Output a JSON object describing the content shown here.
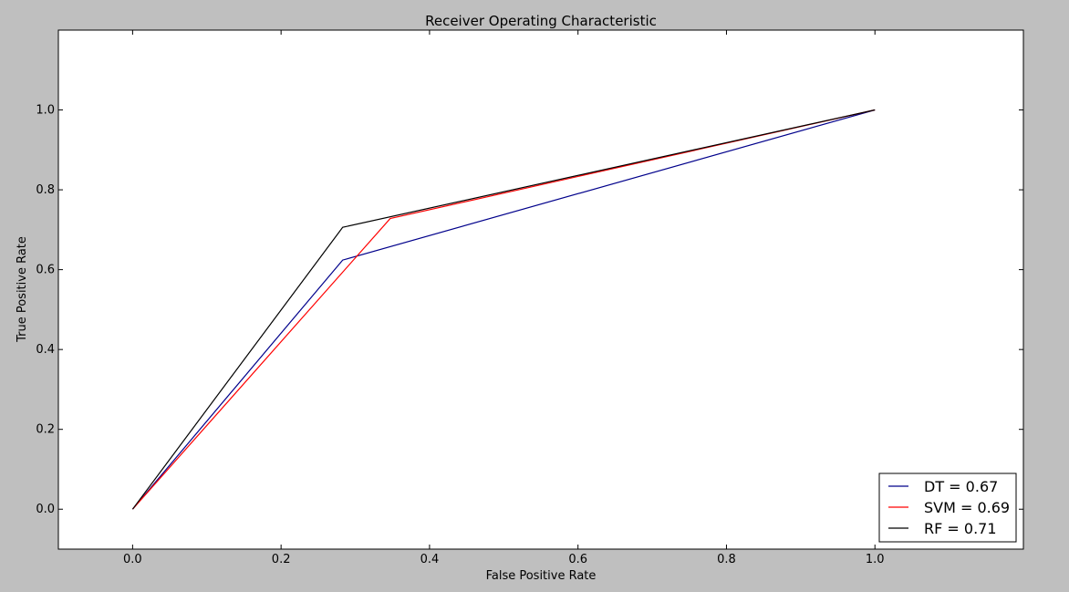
{
  "chart_data": {
    "type": "line",
    "title": "Receiver Operating Characteristic",
    "xlabel": "False Positive Rate",
    "ylabel": "True Positive Rate",
    "xlim": [
      -0.1,
      1.2
    ],
    "ylim": [
      -0.1,
      1.2
    ],
    "xticks": [
      0.0,
      0.2,
      0.4,
      0.6,
      0.8,
      1.0
    ],
    "yticks": [
      0.0,
      0.2,
      0.4,
      0.6,
      0.8,
      1.0
    ],
    "xtick_labels": [
      "0.0",
      "0.2",
      "0.4",
      "0.6",
      "0.8",
      "1.0"
    ],
    "ytick_labels": [
      "0.0",
      "0.2",
      "0.4",
      "0.6",
      "0.8",
      "1.0"
    ],
    "grid": false,
    "legend_position": "bottom-right",
    "series": [
      {
        "name": "DT = 0.67",
        "color": "#00008b",
        "x": [
          0.0,
          0.283,
          1.0
        ],
        "y": [
          0.0,
          0.624,
          1.0
        ]
      },
      {
        "name": "SVM = 0.69",
        "color": "#ff0000",
        "x": [
          0.0,
          0.347,
          1.0
        ],
        "y": [
          0.0,
          0.728,
          1.0
        ]
      },
      {
        "name": "RF = 0.71",
        "color": "#000000",
        "x": [
          0.0,
          0.283,
          1.0
        ],
        "y": [
          0.0,
          0.706,
          1.0
        ]
      }
    ]
  }
}
